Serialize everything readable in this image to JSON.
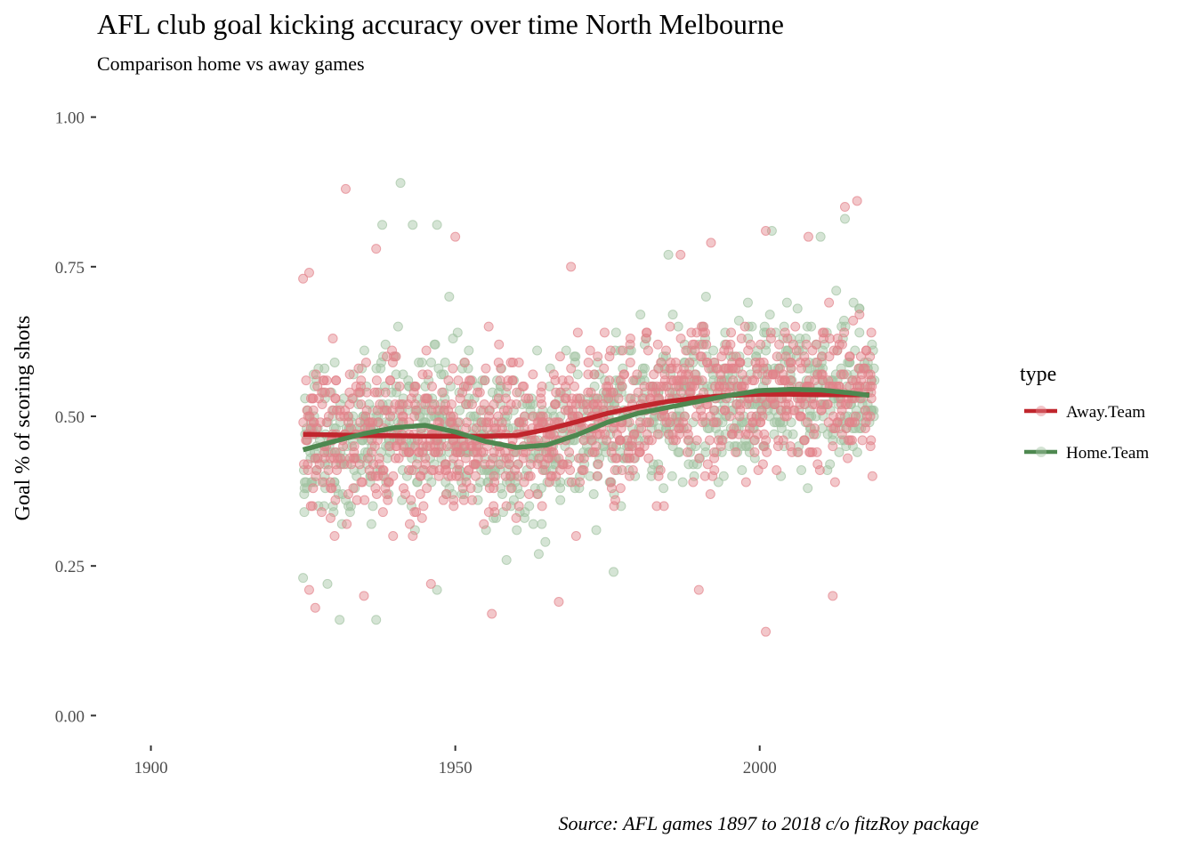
{
  "chart_data": {
    "type": "scatter",
    "title": "AFL club goal kicking accuracy over time North Melbourne",
    "subtitle": "Comparison home vs away games",
    "xlabel": "",
    "ylabel": "Goal % of scoring shots",
    "caption": "Source: AFL games 1897 to 2018 c/o fitzRoy package",
    "xlim": [
      1891,
      2036
    ],
    "ylim": [
      -0.05,
      1.05
    ],
    "x_ticks": [
      1900,
      1950,
      2000
    ],
    "x_tick_labels": [
      "1900",
      "1950",
      "2000"
    ],
    "y_ticks": [
      0,
      0.25,
      0.5,
      0.75,
      1
    ],
    "y_tick_labels": [
      "0.00",
      "0.25",
      "0.50",
      "0.75",
      "1.00"
    ],
    "grid": false,
    "legend": {
      "title": "type",
      "placement": "right",
      "entries": [
        "Away.Team",
        "Home.Team"
      ]
    },
    "series_colors": {
      "Away.Team": "#c0262d",
      "Home.Team": "#4e8850"
    },
    "point_colors": {
      "Away.Team": "#e3828a",
      "Home.Team": "#a2c3a2"
    },
    "points_summary": {
      "x_range": [
        1925,
        2018
      ],
      "y_range": [
        0.14,
        0.89
      ],
      "central_band": [
        0.3,
        0.7
      ]
    },
    "highlighted_points": {
      "Away.Team": [
        {
          "x": 1932,
          "y": 0.88
        },
        {
          "x": 1950,
          "y": 0.8
        },
        {
          "x": 1937,
          "y": 0.78
        },
        {
          "x": 2016,
          "y": 0.86
        },
        {
          "x": 2014,
          "y": 0.85
        },
        {
          "x": 2001,
          "y": 0.81
        },
        {
          "x": 2008,
          "y": 0.8
        },
        {
          "x": 1992,
          "y": 0.79
        },
        {
          "x": 1987,
          "y": 0.77
        },
        {
          "x": 1925,
          "y": 0.73
        },
        {
          "x": 1926,
          "y": 0.74
        },
        {
          "x": 1969,
          "y": 0.75
        },
        {
          "x": 1926,
          "y": 0.21
        },
        {
          "x": 1927,
          "y": 0.18
        },
        {
          "x": 1956,
          "y": 0.17
        },
        {
          "x": 1967,
          "y": 0.19
        },
        {
          "x": 1990,
          "y": 0.21
        },
        {
          "x": 2001,
          "y": 0.14
        },
        {
          "x": 2012,
          "y": 0.2
        },
        {
          "x": 1935,
          "y": 0.2
        },
        {
          "x": 1946,
          "y": 0.22
        }
      ],
      "Home.Team": [
        {
          "x": 1941,
          "y": 0.89
        },
        {
          "x": 1938,
          "y": 0.82
        },
        {
          "x": 1943,
          "y": 0.82
        },
        {
          "x": 1947,
          "y": 0.82
        },
        {
          "x": 2014,
          "y": 0.83
        },
        {
          "x": 2002,
          "y": 0.81
        },
        {
          "x": 2010,
          "y": 0.8
        },
        {
          "x": 1985,
          "y": 0.77
        },
        {
          "x": 1949,
          "y": 0.7
        },
        {
          "x": 1925,
          "y": 0.23
        },
        {
          "x": 1931,
          "y": 0.16
        },
        {
          "x": 1937,
          "y": 0.16
        },
        {
          "x": 1947,
          "y": 0.21
        },
        {
          "x": 1976,
          "y": 0.24
        },
        {
          "x": 1929,
          "y": 0.22
        }
      ]
    },
    "series": [
      {
        "name": "Away.Team",
        "x": [
          1925,
          1935,
          1945,
          1955,
          1960,
          1965,
          1970,
          1975,
          1980,
          1985,
          1990,
          1995,
          2000,
          2005,
          2010,
          2015,
          2018
        ],
        "y": [
          0.47,
          0.468,
          0.467,
          0.467,
          0.468,
          0.478,
          0.491,
          0.505,
          0.516,
          0.525,
          0.531,
          0.535,
          0.537,
          0.537,
          0.536,
          0.536,
          0.536
        ]
      },
      {
        "name": "Home.Team",
        "x": [
          1925,
          1930,
          1935,
          1940,
          1945,
          1950,
          1955,
          1960,
          1965,
          1970,
          1975,
          1980,
          1985,
          1990,
          1995,
          2000,
          2005,
          2010,
          2015,
          2018
        ],
        "y": [
          0.444,
          0.458,
          0.471,
          0.481,
          0.485,
          0.474,
          0.458,
          0.448,
          0.452,
          0.469,
          0.49,
          0.505,
          0.515,
          0.525,
          0.535,
          0.543,
          0.545,
          0.544,
          0.539,
          0.535
        ]
      }
    ]
  }
}
